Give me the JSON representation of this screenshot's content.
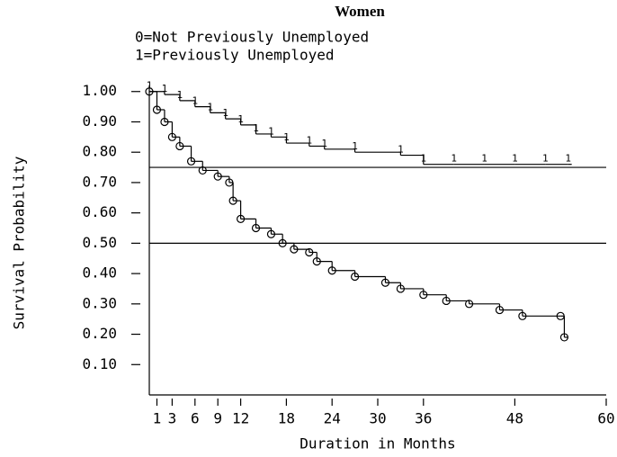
{
  "chart_data": {
    "type": "step",
    "title": "Women",
    "legend": [
      "0=Not Previously Unemployed",
      "1=Previously Unemployed"
    ],
    "xlabel": "Duration in Months",
    "ylabel": "Survival Probability",
    "xlim": [
      0,
      60
    ],
    "ylim": [
      0,
      1.02
    ],
    "xticks": [
      1,
      3,
      6,
      9,
      12,
      18,
      24,
      30,
      36,
      48,
      60
    ],
    "yticks": [
      {
        "value": 0.1,
        "label": "0.10"
      },
      {
        "value": 0.2,
        "label": "0.20"
      },
      {
        "value": 0.3,
        "label": "0.30"
      },
      {
        "value": 0.4,
        "label": "0.40"
      },
      {
        "value": 0.5,
        "label": "0.50"
      },
      {
        "value": 0.6,
        "label": "0.60"
      },
      {
        "value": 0.7,
        "label": "0.70"
      },
      {
        "value": 0.8,
        "label": "0.80"
      },
      {
        "value": 0.9,
        "label": "0.90"
      },
      {
        "value": 1.0,
        "label": "1.00"
      }
    ],
    "reference_lines": [
      0.75,
      0.5
    ],
    "series": [
      {
        "name": "0",
        "marker": "circle",
        "color": "#000",
        "x": [
          0,
          1,
          2,
          3,
          4,
          5.5,
          7,
          9,
          10.5,
          11,
          12,
          14,
          16,
          17.5,
          19,
          21,
          22,
          24,
          27,
          31,
          33,
          36,
          39,
          42,
          46,
          49,
          54,
          54.5
        ],
        "values": [
          1.0,
          0.94,
          0.9,
          0.85,
          0.82,
          0.77,
          0.74,
          0.72,
          0.7,
          0.64,
          0.58,
          0.55,
          0.53,
          0.5,
          0.48,
          0.47,
          0.44,
          0.41,
          0.39,
          0.37,
          0.35,
          0.33,
          0.31,
          0.3,
          0.28,
          0.26,
          0.26,
          0.19
        ]
      },
      {
        "name": "1",
        "marker": "1",
        "color": "#000",
        "x": [
          0,
          2,
          4,
          6,
          8,
          10,
          12,
          14,
          16,
          18,
          21,
          23,
          27,
          33,
          36,
          40,
          44,
          48,
          52,
          55
        ],
        "values": [
          1.0,
          0.99,
          0.97,
          0.95,
          0.93,
          0.91,
          0.89,
          0.86,
          0.85,
          0.83,
          0.82,
          0.81,
          0.8,
          0.79,
          0.76,
          0.76,
          0.76,
          0.76,
          0.76,
          0.76
        ]
      }
    ]
  }
}
